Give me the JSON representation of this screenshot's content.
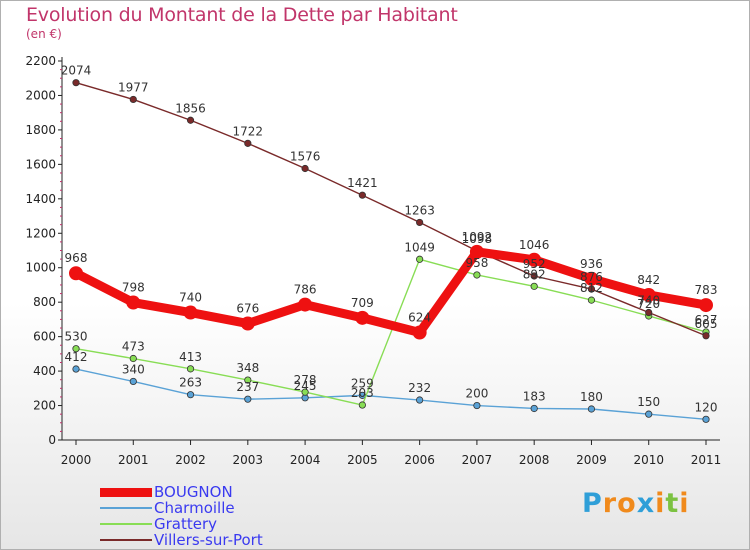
{
  "header": {
    "title": "Evolution du Montant de la Dette par Habitant",
    "subtitle": "(en €)"
  },
  "logo": {
    "letters": [
      "P",
      "r",
      "o",
      "x",
      "i",
      "t",
      "i"
    ],
    "colors": [
      "#2f9fd8",
      "#f08a1c",
      "#f08a1c",
      "#2f9fd8",
      "#f08a1c",
      "#7cc242",
      "#f08a1c"
    ]
  },
  "chart_data": {
    "type": "line",
    "title": "Evolution du Montant de la Dette par Habitant",
    "subtitle": "(en €)",
    "xlabel": "",
    "ylabel": "",
    "categories": [
      "2000",
      "2001",
      "2002",
      "2003",
      "2004",
      "2005",
      "2006",
      "2007",
      "2008",
      "2009",
      "2010",
      "2011"
    ],
    "ylim": [
      0,
      2200
    ],
    "yticks": [
      0,
      200,
      400,
      600,
      800,
      1000,
      1200,
      1400,
      1600,
      1800,
      2000,
      2200
    ],
    "grid": false,
    "legend_position": "bottom-left",
    "series": [
      {
        "name": "BOUGNON",
        "color": "#ee1111",
        "emphasis": true,
        "values": [
          968,
          798,
          740,
          676,
          786,
          709,
          624,
          1092,
          1046,
          936,
          842,
          783
        ],
        "labels": [
          "968",
          "798",
          "740",
          "676",
          "786",
          "709",
          "624",
          "1092",
          "1046",
          "936",
          "842",
          "783"
        ]
      },
      {
        "name": "Charmoille",
        "color": "#5aa2d6",
        "emphasis": false,
        "values": [
          412,
          340,
          263,
          237,
          245,
          259,
          232,
          200,
          183,
          180,
          150,
          120
        ],
        "labels": [
          "412",
          "340",
          "263",
          "237",
          "245",
          "259",
          "232",
          "200",
          "183",
          "180",
          "150",
          "120"
        ]
      },
      {
        "name": "Grattery",
        "color": "#88dd55",
        "emphasis": false,
        "values": [
          530,
          473,
          413,
          348,
          278,
          203,
          1049,
          958,
          892,
          812,
          720,
          627
        ],
        "labels": [
          "530",
          "473",
          "413",
          "348",
          "278",
          "203",
          "1049",
          "958",
          "892",
          "812",
          "720",
          "627"
        ]
      },
      {
        "name": "Villers-sur-Port",
        "color": "#7a2a2a",
        "emphasis": false,
        "values": [
          2074,
          1977,
          1856,
          1722,
          1576,
          1421,
          1263,
          1098,
          952,
          876,
          740,
          605
        ],
        "labels": [
          "2074",
          "1977",
          "1856",
          "1722",
          "1576",
          "1421",
          "1263",
          "1098",
          "952",
          "876",
          "740",
          "605"
        ]
      }
    ]
  }
}
